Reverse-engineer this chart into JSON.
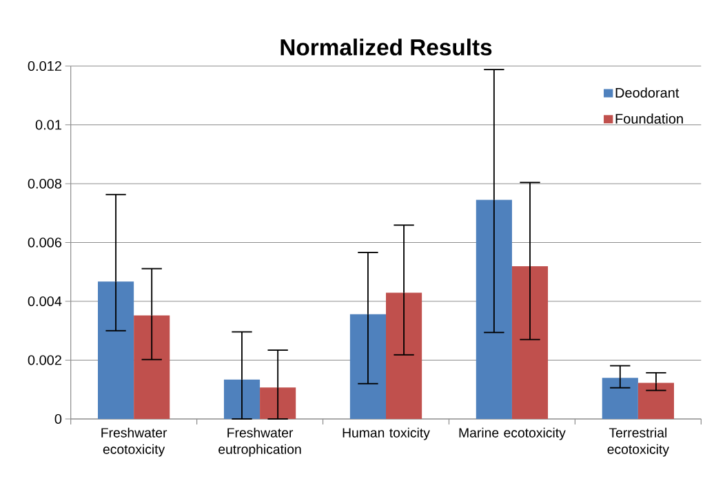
{
  "chart_data": {
    "type": "bar",
    "title": "Normalized Results",
    "categories": [
      "Freshwater ecotoxicity",
      "Freshwater eutrophication",
      "Human toxicity",
      "Marine ecotoxicity",
      "Terrestrial ecotoxicity"
    ],
    "series": [
      {
        "name": "Deodorant",
        "color": "#4f81bd",
        "values": [
          0.00467,
          0.00134,
          0.00356,
          0.00745,
          0.0014
        ],
        "errors": [
          [
            0.003,
            0.00763
          ],
          [
            0,
            0.00296
          ],
          [
            0.0012,
            0.00566
          ],
          [
            0.00294,
            0.01188
          ],
          [
            0.00106,
            0.00181
          ]
        ]
      },
      {
        "name": "Foundation",
        "color": "#c0504d",
        "values": [
          0.00352,
          0.00107,
          0.00429,
          0.00519,
          0.00123
        ],
        "errors": [
          [
            0.00202,
            0.00511
          ],
          [
            0,
            0.00234
          ],
          [
            0.00218,
            0.00659
          ],
          [
            0.0027,
            0.00804
          ],
          [
            0.00097,
            0.00157
          ]
        ]
      }
    ],
    "ylim": [
      0,
      0.012
    ],
    "yticks": [
      0,
      0.002,
      0.004,
      0.006,
      0.008,
      0.01,
      0.012
    ],
    "grid": "y",
    "legend": "top right"
  }
}
